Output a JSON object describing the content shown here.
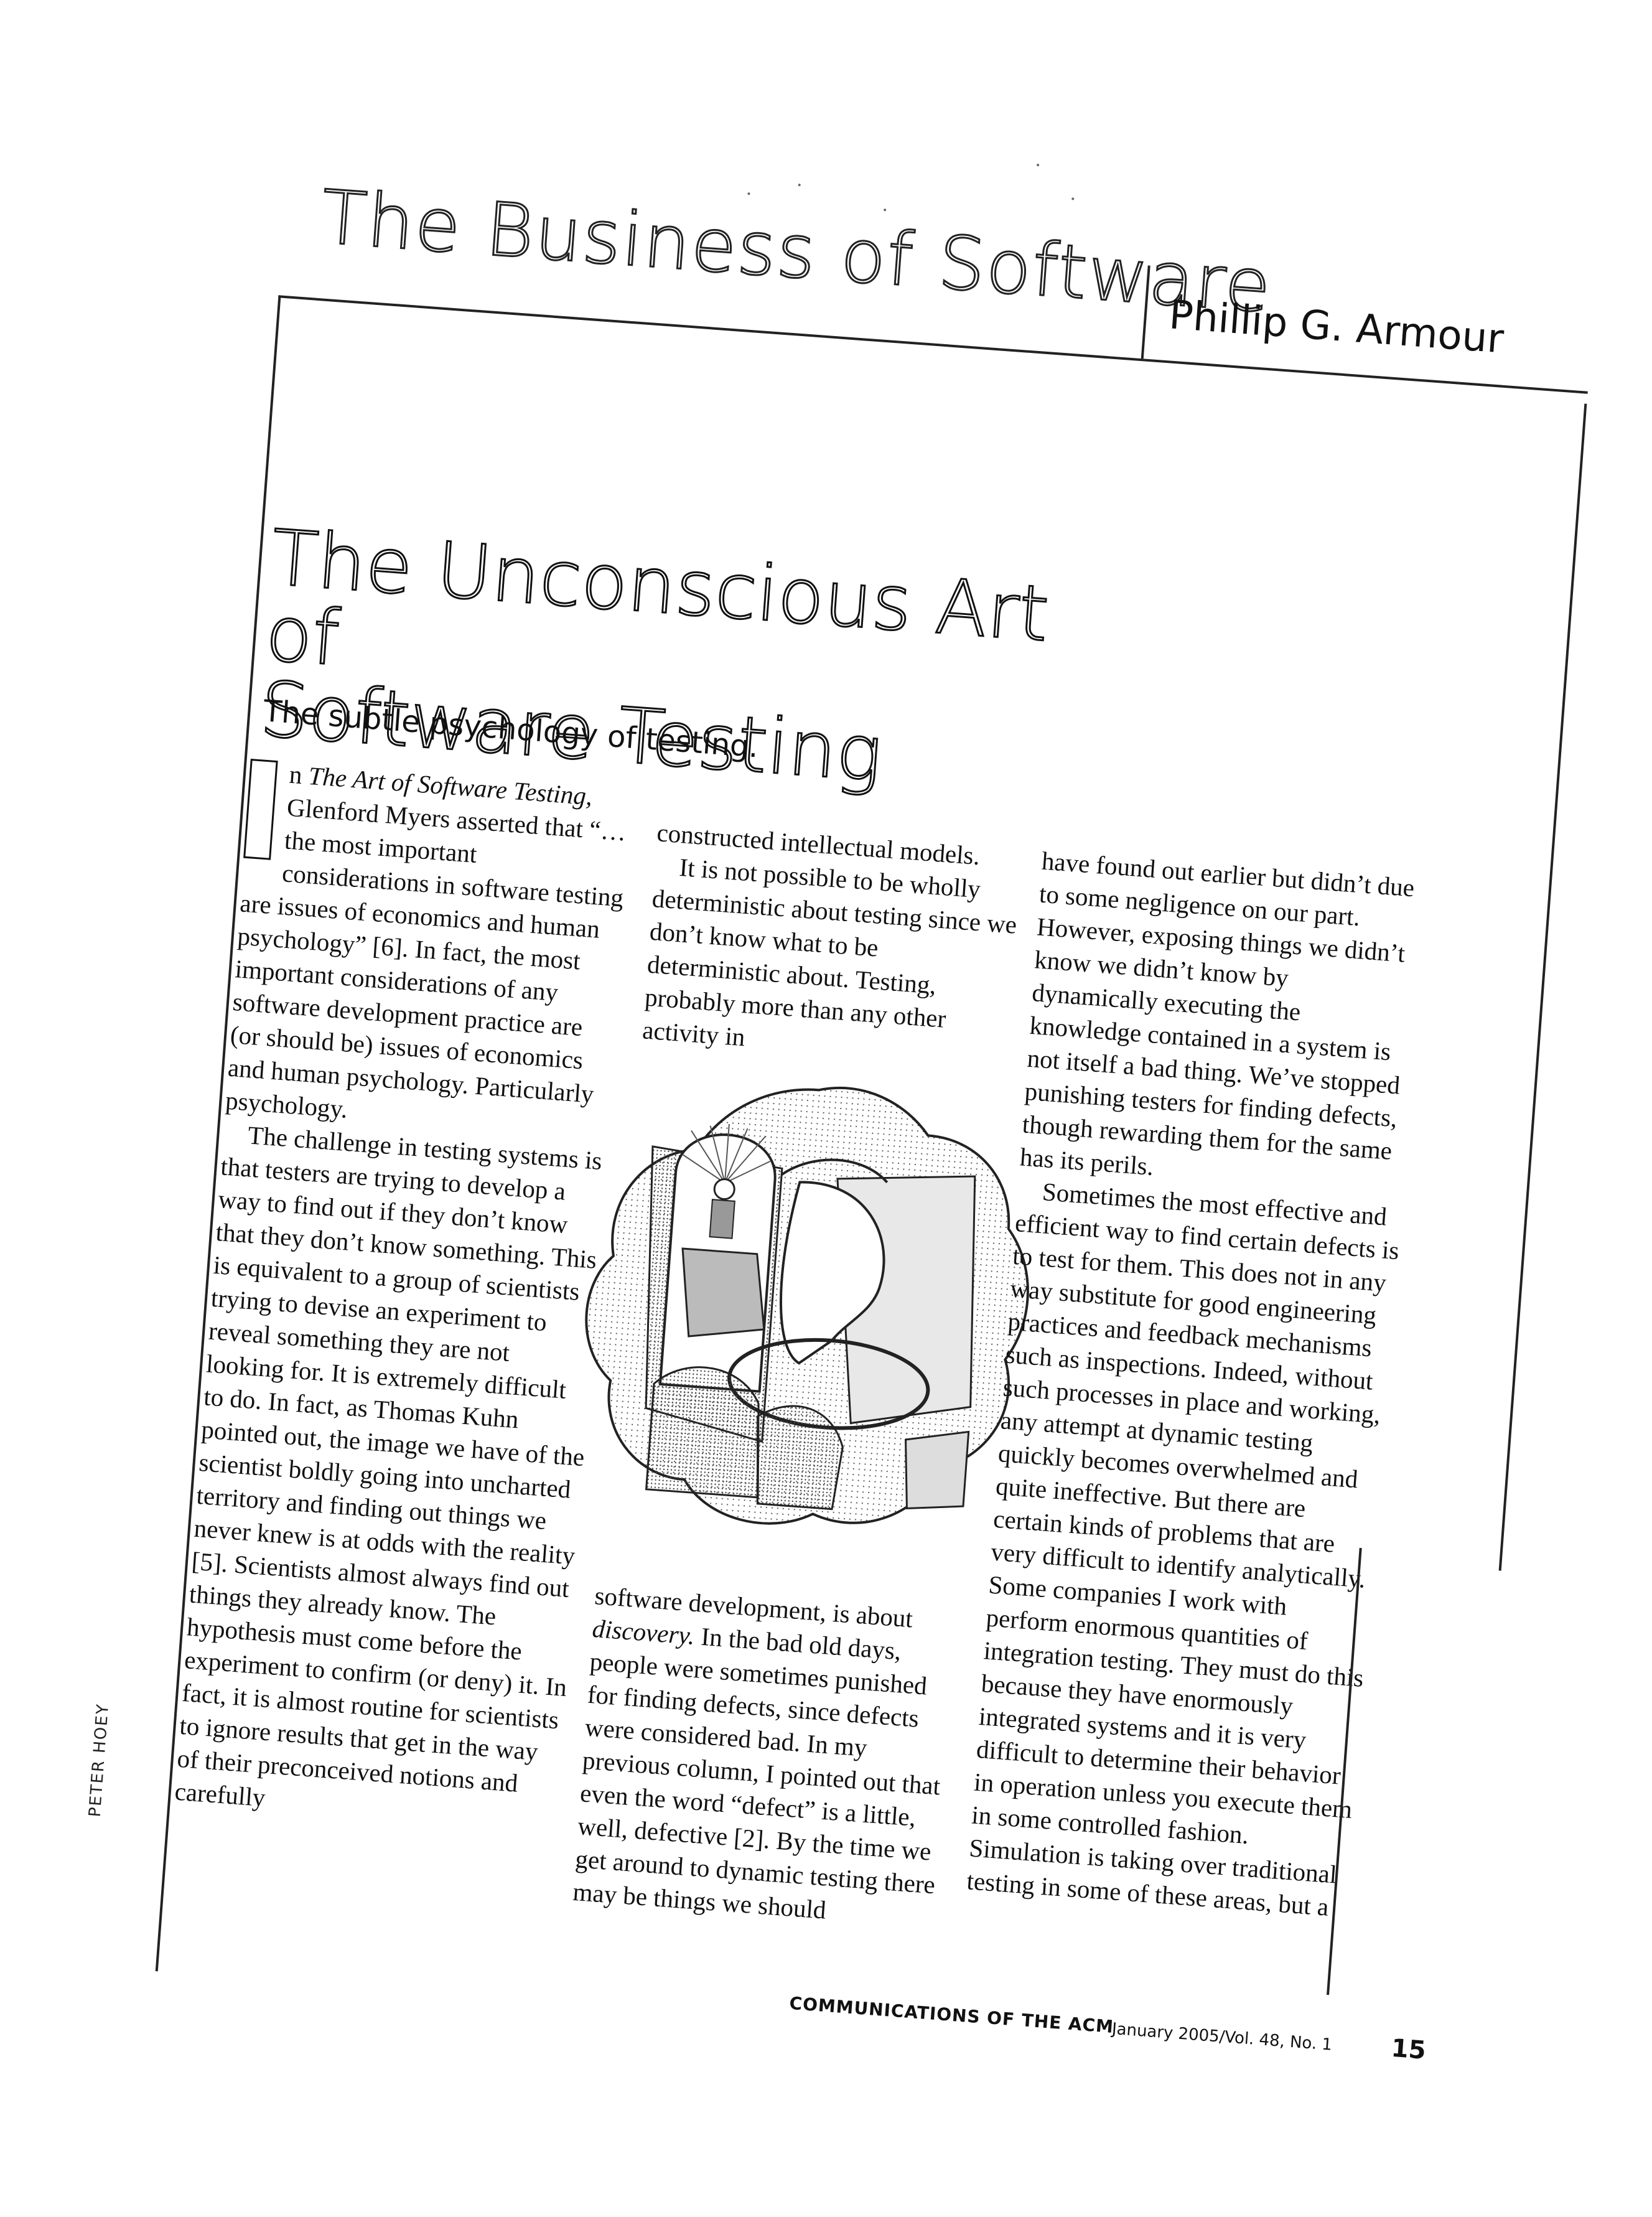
{
  "header": {
    "section": "The Business of Software",
    "author": "Phillip G. Armour"
  },
  "article": {
    "title_line1": "The Unconscious Art of",
    "title_line2": "Software Testing",
    "deck": "The subtle psychology of testing.",
    "dropcap": "I",
    "col1": {
      "p1_lead": "n ",
      "p1_italic": "The Art of Software Testing,",
      "p1_rest": " Glenford Myers asserted that “…the most important considerations in software testing are issues of economics and human psychology” [6]. In fact, the most important considerations of any software development practice are (or should be) issues of economics and human psychology. Particularly psychology.",
      "p2": "The challenge in testing systems is that testers are trying to develop a way to find out if they don’t know that they don’t know something. This is equivalent to a group of scientists trying to devise an experiment to reveal something they are not looking for. It is extremely difficult to do. In fact, as Thomas Kuhn pointed out, the image we have of the scientist boldly going into uncharted territory and finding out things we never knew is at odds with the reality [5]. Scientists almost always find out things they already know. The hypothesis must come before the experiment to confirm (or deny) it. In fact, it is almost routine for scientists to ignore results that get in the way of their preconceived notions and carefully"
    },
    "col2": {
      "p1": "constructed intellectual models.",
      "p2": "It is not possible to be wholly deterministic about testing since we don’t know what to be deterministic about. Testing, probably more than any other activity in",
      "p3_lead": "software development, is about ",
      "p3_italic": "discovery.",
      "p3_rest": " In the bad old days, people were sometimes punished for finding defects, since defects were considered bad. In my previous column, I pointed out that even the word “defect” is a little, well, defective [2]. By the time we get around to dynamic testing there may be things we should"
    },
    "col3": {
      "p1": "have found out earlier but didn’t due to some negligence on our part. However, exposing things we didn’t know we didn’t know by dynamically executing the knowledge contained in a system is not itself a bad thing. We’ve stopped punishing testers for finding defects, though rewarding them for the same has its perils.",
      "p2": "Sometimes the most effective and efficient way to find certain defects is to test for them. This does not in any way substitute for good engineering practices and feedback mechanisms such as inspections. Indeed, without such processes in place and working, any attempt at dynamic testing quickly becomes overwhelmed and quite ineffective. But there are certain kinds of problems that are very difficult to identify analytically. Some companies I work with perform enormous quantities of integration testing. They must do this because they have enormously integrated systems and it is very difficult to determine their behavior in operation unless you execute them in some controlled fashion. Simulation is taking over traditional testing in some of these areas, but a"
    }
  },
  "illustration": {
    "credit": "PETER HOEY"
  },
  "footer": {
    "publication": "COMMUNICATIONS OF THE ACM",
    "issue": "January 2005/Vol. 48, No. 1",
    "page": "15"
  }
}
